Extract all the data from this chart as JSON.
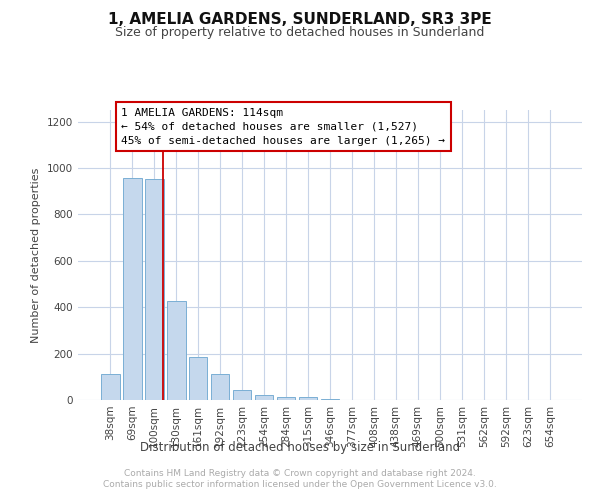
{
  "title": "1, AMELIA GARDENS, SUNDERLAND, SR3 3PE",
  "subtitle": "Size of property relative to detached houses in Sunderland",
  "xlabel": "Distribution of detached houses by size in Sunderland",
  "ylabel": "Number of detached properties",
  "x_labels": [
    "38sqm",
    "69sqm",
    "100sqm",
    "130sqm",
    "161sqm",
    "192sqm",
    "223sqm",
    "254sqm",
    "284sqm",
    "315sqm",
    "346sqm",
    "377sqm",
    "408sqm",
    "438sqm",
    "469sqm",
    "500sqm",
    "531sqm",
    "562sqm",
    "592sqm",
    "623sqm",
    "654sqm"
  ],
  "values": [
    113,
    957,
    952,
    428,
    184,
    113,
    43,
    20,
    14,
    14,
    4,
    2,
    1,
    1,
    0,
    0,
    1,
    0,
    0,
    1,
    0
  ],
  "bar_color": "#c5d8ed",
  "bar_edgecolor": "#7aafd4",
  "ylim": [
    0,
    1250
  ],
  "yticks": [
    0,
    200,
    400,
    600,
    800,
    1000,
    1200
  ],
  "annotation_line1": "1 AMELIA GARDENS: 114sqm",
  "annotation_line2": "← 54% of detached houses are smaller (1,527)",
  "annotation_line3": "45% of semi-detached houses are larger (1,265) →",
  "vline_x": 2.42,
  "vline_color": "#cc0000",
  "box_edgecolor": "#cc0000",
  "footer_line1": "Contains HM Land Registry data © Crown copyright and database right 2024.",
  "footer_line2": "Contains public sector information licensed under the Open Government Licence v3.0.",
  "background_color": "#ffffff",
  "grid_color": "#c8d4e8",
  "title_fontsize": 11,
  "subtitle_fontsize": 9,
  "ylabel_fontsize": 8,
  "xlabel_fontsize": 8.5,
  "tick_fontsize": 7.5,
  "footer_fontsize": 6.5,
  "ann_fontsize": 8
}
